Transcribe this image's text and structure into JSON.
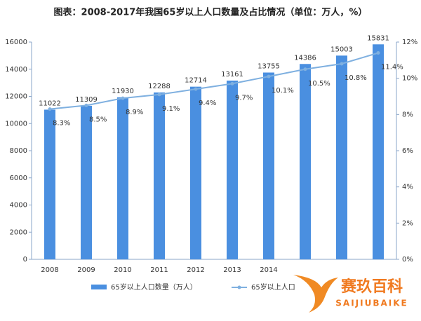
{
  "chart_data": {
    "type": "bar-line",
    "title": "图表：2008-2017年我国65岁以上人口数量及占比情况（单位：万人，%）",
    "categories": [
      "2008",
      "2009",
      "2010",
      "2011",
      "2012",
      "2013",
      "2014",
      null,
      null,
      null
    ],
    "series": [
      {
        "name": "65岁以上人口数量（万人）",
        "type": "bar",
        "color": "#4a8fe0",
        "values": [
          11022,
          11309,
          11930,
          12288,
          12714,
          13161,
          13755,
          14386,
          15003,
          15831
        ]
      },
      {
        "name": "65岁以上人口",
        "type": "line",
        "axis": "y2",
        "color": "#7fb0e0",
        "values": [
          8.3,
          8.5,
          8.9,
          9.1,
          9.4,
          9.7,
          10.1,
          10.5,
          10.8,
          11.4
        ],
        "value_labels": [
          "8.3%",
          "8.5%",
          "8.9%",
          "9.1%",
          "9.4%",
          "9.7%",
          "10.1%",
          "10.5%",
          "10.8%",
          "11.4%"
        ]
      }
    ],
    "ylim": [
      0,
      16000
    ],
    "yticks": [
      0,
      2000,
      4000,
      6000,
      8000,
      10000,
      12000,
      14000,
      16000
    ],
    "y2lim": [
      0,
      12
    ],
    "y2ticks": [
      {
        "value": 0,
        "label": "0%"
      },
      {
        "value": 2,
        "label": "2%"
      },
      {
        "value": 4,
        "label": "4%"
      },
      {
        "value": 6,
        "label": "6%"
      },
      {
        "value": 8,
        "label": "8%"
      },
      {
        "value": 10,
        "label": "10%"
      },
      {
        "value": 12,
        "label": "12%"
      }
    ],
    "grid": false,
    "legend": "bottom"
  },
  "watermark": {
    "brand": "赛玖百科",
    "latin": "SAIJIUBAIKE"
  }
}
